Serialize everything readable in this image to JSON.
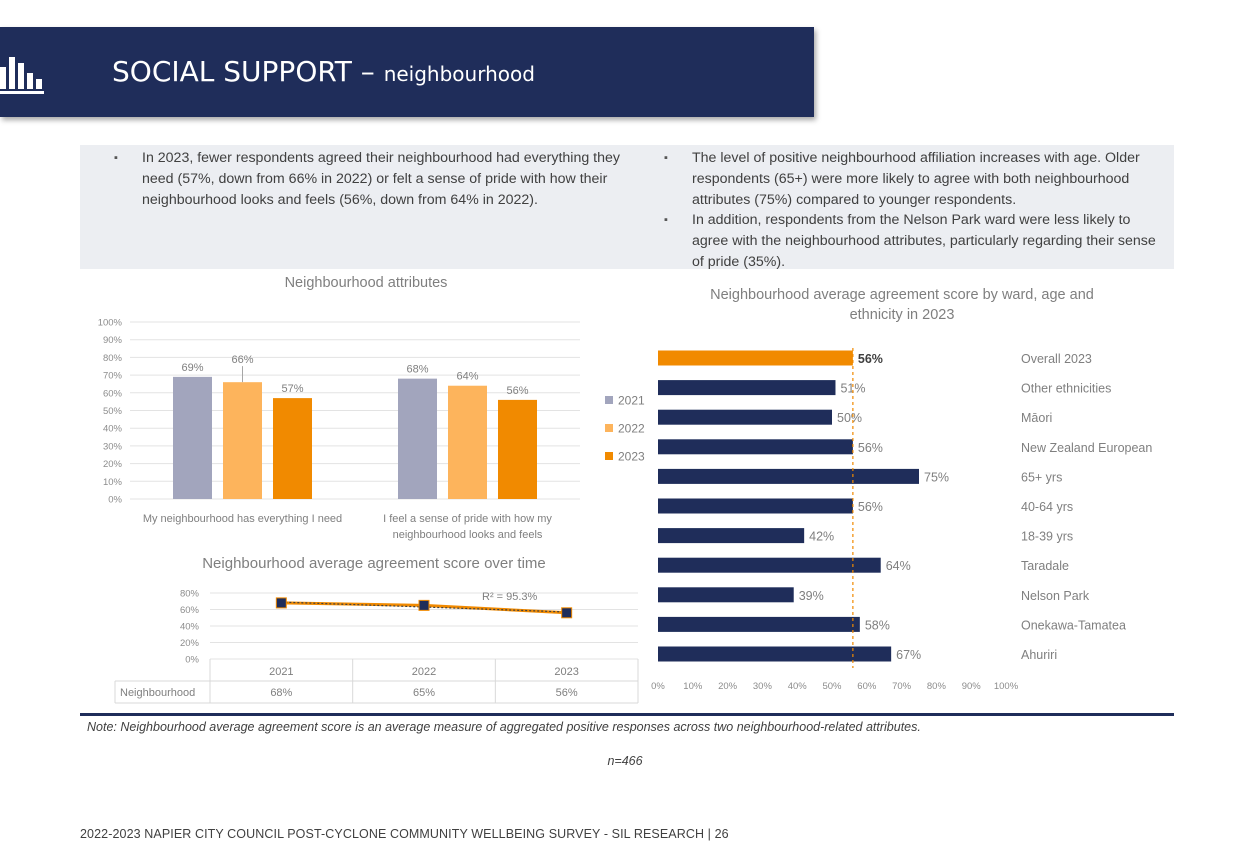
{
  "header": {
    "title_main": "SOCIAL SUPPORT – ",
    "title_sub": "neighbourhood",
    "icon": "bar-chart-icon",
    "bg_color": "#1f2d5a"
  },
  "summary": {
    "left_bullets": [
      "In 2023, fewer respondents agreed their neighbourhood had everything they need (57%, down from 66% in 2022) or felt a sense of pride with how their neighbourhood looks and feels (56%, down from 64% in 2022)."
    ],
    "right_bullets": [
      "The level of positive neighbourhood affiliation increases with age. Older respondents (65+) were more likely to agree with both neighbourhood attributes (75%) compared to younger respondents.",
      "In addition, respondents from the Nelson Park ward were less likely to agree with the neighbourhood attributes, particularly regarding their sense of pride (35%)."
    ]
  },
  "colors": {
    "y2021": "#a2a5bd",
    "y2022": "#fdb45c",
    "y2023": "#f18a00",
    "navy": "#1f2d5a"
  },
  "chart_data": [
    {
      "type": "bar",
      "title": "Neighbourhood attributes",
      "categories": [
        "My neighbourhood has everything I need",
        "I feel a sense of pride with how my neighbourhood looks and feels"
      ],
      "category_lines": [
        [
          "My neighbourhood has everything I need"
        ],
        [
          "I feel a sense of pride with how my",
          "neighbourhood looks and feels"
        ]
      ],
      "series": [
        {
          "name": "2021",
          "values": [
            69,
            68
          ],
          "labels": [
            "69%",
            "68%"
          ]
        },
        {
          "name": "2022",
          "values": [
            66,
            64
          ],
          "labels": [
            "66%",
            "64%"
          ]
        },
        {
          "name": "2023",
          "values": [
            57,
            56
          ],
          "labels": [
            "57%",
            "56%"
          ]
        }
      ],
      "yticks": [
        "0%",
        "10%",
        "20%",
        "30%",
        "40%",
        "50%",
        "60%",
        "70%",
        "80%",
        "90%",
        "100%"
      ],
      "ylim": [
        0,
        100
      ],
      "grid": true,
      "legend": "right"
    },
    {
      "type": "line",
      "title": "Neighbourhood average agreement score over time",
      "x": [
        "2021",
        "2022",
        "2023"
      ],
      "series": [
        {
          "name": "Neighbourhood",
          "values": [
            68,
            65,
            56
          ],
          "labels": [
            "68%",
            "65%",
            "56%"
          ]
        }
      ],
      "trendline_label": "R² = 95.3%",
      "yticks": [
        "0%",
        "20%",
        "40%",
        "60%",
        "80%"
      ],
      "ylim": [
        0,
        80
      ],
      "grid": true
    },
    {
      "type": "bar",
      "orientation": "horizontal",
      "title": "Neighbourhood average agreement score by ward, age and ethnicity in 2023",
      "title_lines": [
        "Neighbourhood average agreement score by ward, age and",
        "ethnicity in 2023"
      ],
      "categories": [
        "Overall 2023",
        "Other ethnicities",
        "Māori",
        "New Zealand European",
        "65+ yrs",
        "40-64 yrs",
        "18-39 yrs",
        "Taradale",
        "Nelson Park",
        "Onekawa-Tamatea",
        "Ahuriri"
      ],
      "values": [
        56,
        51,
        50,
        56,
        75,
        56,
        42,
        64,
        39,
        58,
        67
      ],
      "labels": [
        "56%",
        "51%",
        "50%",
        "56%",
        "75%",
        "56%",
        "42%",
        "64%",
        "39%",
        "58%",
        "67%"
      ],
      "highlight": "Overall 2023",
      "reference_line": 56,
      "xticks": [
        "0%",
        "10%",
        "20%",
        "30%",
        "40%",
        "50%",
        "60%",
        "70%",
        "80%",
        "90%",
        "100%"
      ],
      "xlim": [
        0,
        100
      ]
    }
  ],
  "note": "Note: Neighbourhood average agreement score is an average measure of aggregated positive responses across two neighbourhood-related attributes.",
  "sample_size": "n=466",
  "footer": "2022-2023 NAPIER CITY COUNCIL POST-CYCLONE COMMUNITY WELLBEING SURVEY - SIL RESEARCH | 26"
}
